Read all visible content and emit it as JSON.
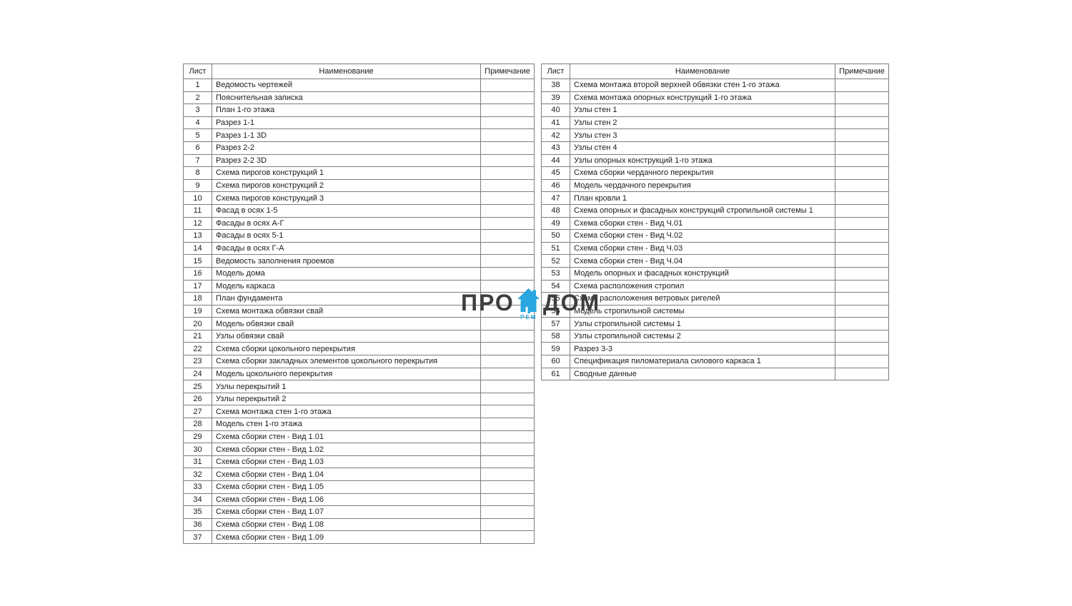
{
  "page": {
    "background": "#ffffff",
    "border_color": "#7d7d7d",
    "text_color": "#1c1c1c"
  },
  "columns": {
    "sheet": "Лист",
    "name": "Наименование",
    "note": "Примечание"
  },
  "left_table": {
    "rows": [
      {
        "sheet": "1",
        "name": "Ведомость чертежей",
        "note": ""
      },
      {
        "sheet": "2",
        "name": "Пояснительная записка",
        "note": ""
      },
      {
        "sheet": "3",
        "name": "План 1-го этажа",
        "note": ""
      },
      {
        "sheet": "4",
        "name": "Разрез 1-1",
        "note": ""
      },
      {
        "sheet": "5",
        "name": "Разрез 1-1 3D",
        "note": ""
      },
      {
        "sheet": "6",
        "name": "Разрез 2-2",
        "note": ""
      },
      {
        "sheet": "7",
        "name": "Разрез 2-2 3D",
        "note": ""
      },
      {
        "sheet": "8",
        "name": "Схема пирогов конструкций 1",
        "note": ""
      },
      {
        "sheet": "9",
        "name": "Схема пирогов конструкций 2",
        "note": ""
      },
      {
        "sheet": "10",
        "name": "Схема пирогов конструкций 3",
        "note": ""
      },
      {
        "sheet": "11",
        "name": "Фасад в осях 1-5",
        "note": ""
      },
      {
        "sheet": "12",
        "name": "Фасады в осях А-Г",
        "note": ""
      },
      {
        "sheet": "13",
        "name": "Фасады в осях 5-1",
        "note": ""
      },
      {
        "sheet": "14",
        "name": "Фасады в осях Г-А",
        "note": ""
      },
      {
        "sheet": "15",
        "name": "Ведомость заполнения проемов",
        "note": ""
      },
      {
        "sheet": "16",
        "name": "Модель дома",
        "note": ""
      },
      {
        "sheet": "17",
        "name": "Модель каркаса",
        "note": ""
      },
      {
        "sheet": "18",
        "name": "План фундамента",
        "note": ""
      },
      {
        "sheet": "19",
        "name": "Схема монтажа обвязки свай",
        "note": ""
      },
      {
        "sheet": "20",
        "name": "Модель обвязки свай",
        "note": ""
      },
      {
        "sheet": "21",
        "name": "Узлы обвязки свай",
        "note": ""
      },
      {
        "sheet": "22",
        "name": "Схема сборки цокольного перекрытия",
        "note": ""
      },
      {
        "sheet": "23",
        "name": "Схема сборки закладных элементов цокольного перекрытия",
        "note": ""
      },
      {
        "sheet": "24",
        "name": "Модель цокольного перекрытия",
        "note": ""
      },
      {
        "sheet": "25",
        "name": "Узлы перекрытий 1",
        "note": ""
      },
      {
        "sheet": "26",
        "name": "Узлы  перекрытий 2",
        "note": ""
      },
      {
        "sheet": "27",
        "name": "Схема монтажа стен 1-го этажа",
        "note": ""
      },
      {
        "sheet": "28",
        "name": "Модель стен 1-го этажа",
        "note": ""
      },
      {
        "sheet": "29",
        "name": "Схема сборки стен - Вид 1.01",
        "note": ""
      },
      {
        "sheet": "30",
        "name": "Схема сборки стен - Вид 1.02",
        "note": ""
      },
      {
        "sheet": "31",
        "name": "Схема сборки стен - Вид 1.03",
        "note": ""
      },
      {
        "sheet": "32",
        "name": "Схема сборки стен - Вид 1.04",
        "note": ""
      },
      {
        "sheet": "33",
        "name": "Схема сборки стен - Вид 1.05",
        "note": ""
      },
      {
        "sheet": "34",
        "name": "Схема сборки стен - Вид 1.06",
        "note": ""
      },
      {
        "sheet": "35",
        "name": "Схема сборки стен - Вид 1.07",
        "note": ""
      },
      {
        "sheet": "36",
        "name": "Схема сборки стен - Вид 1.08",
        "note": ""
      },
      {
        "sheet": "37",
        "name": "Схема сборки стен - Вид 1.09",
        "note": ""
      }
    ]
  },
  "right_table": {
    "rows": [
      {
        "sheet": "38",
        "name": "Схема монтажа второй верхней обвязки стен 1-го этажа",
        "note": ""
      },
      {
        "sheet": "39",
        "name": "Схема монтажа опорных конструкций 1-го этажа",
        "note": ""
      },
      {
        "sheet": "40",
        "name": "Узлы стен 1",
        "note": ""
      },
      {
        "sheet": "41",
        "name": "Узлы стен 2",
        "note": ""
      },
      {
        "sheet": "42",
        "name": "Узлы стен 3",
        "note": ""
      },
      {
        "sheet": "43",
        "name": "Узлы стен 4",
        "note": ""
      },
      {
        "sheet": "44",
        "name": "Узлы опорных конструкций 1-го этажа",
        "note": ""
      },
      {
        "sheet": "45",
        "name": "Схема сборки чердачного перекрытия",
        "note": ""
      },
      {
        "sheet": "46",
        "name": "Модель чердачного перекрытия",
        "note": ""
      },
      {
        "sheet": "47",
        "name": "План кровли 1",
        "note": ""
      },
      {
        "sheet": "48",
        "name": "Схема опорных и фасадных конструкций стропильной системы 1",
        "note": ""
      },
      {
        "sheet": "49",
        "name": "Схема сборки стен - Вид Ч.01",
        "note": ""
      },
      {
        "sheet": "50",
        "name": "Схема сборки стен - Вид Ч.02",
        "note": ""
      },
      {
        "sheet": "51",
        "name": "Схема сборки стен - Вид Ч.03",
        "note": ""
      },
      {
        "sheet": "52",
        "name": "Схема сборки стен - Вид Ч.04",
        "note": ""
      },
      {
        "sheet": "53",
        "name": "Модель опорных и фасадных конструкций",
        "note": ""
      },
      {
        "sheet": "54",
        "name": "Схема расположения стропил",
        "note": ""
      },
      {
        "sheet": "55",
        "name": "Схема расположения ветровых ригелей",
        "note": ""
      },
      {
        "sheet": "56",
        "name": "Модель стропильной системы",
        "note": ""
      },
      {
        "sheet": "57",
        "name": "Узлы стропильной системы 1",
        "note": ""
      },
      {
        "sheet": "58",
        "name": "Узлы стропильной системы 2",
        "note": ""
      },
      {
        "sheet": "59",
        "name": "Разрез 3-3",
        "note": ""
      },
      {
        "sheet": "60",
        "name": "Спецификация пиломатериала силового каркаса 1",
        "note": ""
      },
      {
        "sheet": "61",
        "name": "Сводные данные",
        "note": ""
      }
    ]
  },
  "watermark": {
    "pro": "ПРО",
    "dom": "ДОМ",
    "rem": "РЕМ",
    "text_color": "#3e3e3e",
    "accent_color": "#2aa7e0",
    "icon": "house-icon"
  }
}
